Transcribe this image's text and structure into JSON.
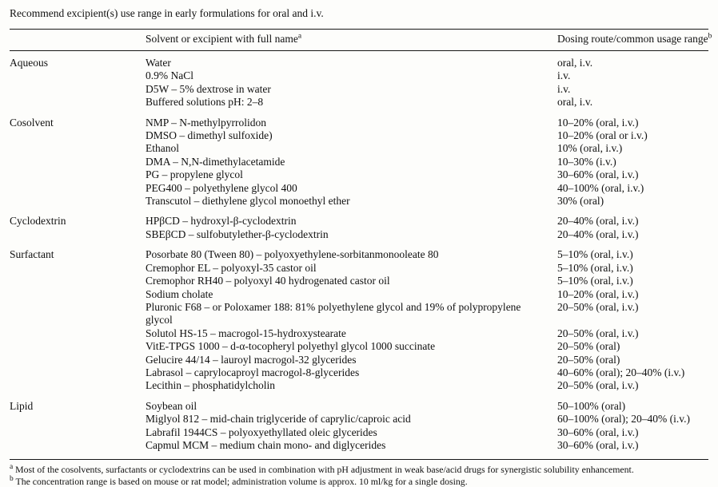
{
  "page": {
    "title": "Recommend excipient(s) use range in early formulations for oral and i.v."
  },
  "table": {
    "headers": {
      "name": {
        "label": "Solvent or excipient with full name",
        "sup": "a"
      },
      "range": {
        "label": "Dosing route/common usage range",
        "sup": "b"
      }
    },
    "groups": [
      {
        "category": "Aqueous",
        "rows": [
          {
            "name": "Water",
            "range": "oral, i.v."
          },
          {
            "name": "0.9% NaCl",
            "range": "i.v."
          },
          {
            "name": "D5W – 5% dextrose in water",
            "range": "i.v."
          },
          {
            "name": "Buffered solutions pH: 2–8",
            "range": "oral, i.v."
          }
        ]
      },
      {
        "category": "Cosolvent",
        "rows": [
          {
            "name": "NMP – N-methylpyrrolidon",
            "range": "10–20% (oral, i.v.)"
          },
          {
            "name": "DMSO – dimethyl sulfoxide)",
            "range": "10–20% (oral or i.v.)"
          },
          {
            "name": "Ethanol",
            "range": "10% (oral, i.v.)"
          },
          {
            "name": "DMA – N,N-dimethylacetamide",
            "range": "10–30% (i.v.)"
          },
          {
            "name": "PG – propylene glycol",
            "range": "30–60% (oral, i.v.)"
          },
          {
            "name": "PEG400 – polyethylene glycol 400",
            "range": "40–100% (oral, i.v.)"
          },
          {
            "name": "Transcutol – diethylene glycol monoethyl ether",
            "range": "30% (oral)"
          }
        ]
      },
      {
        "category": "Cyclodextrin",
        "rows": [
          {
            "name": "HPβCD – hydroxyl-β-cyclodextrin",
            "range": "20–40% (oral, i.v.)"
          },
          {
            "name": "SBEβCD – sulfobutylether-β-cyclodextrin",
            "range": "20–40% (oral, i.v.)"
          }
        ]
      },
      {
        "category": "Surfactant",
        "rows": [
          {
            "name": "Posorbate 80 (Tween 80) – polyoxyethylene-sorbitanmonooleate 80",
            "range": "5–10% (oral, i.v.)"
          },
          {
            "name": "Cremophor EL – polyoxyl-35 castor oil",
            "range": "5–10% (oral, i.v.)"
          },
          {
            "name": "Cremophor RH40 – polyoxyl 40 hydrogenated castor oil",
            "range": "5–10% (oral, i.v.)"
          },
          {
            "name": "Sodium cholate",
            "range": "10–20% (oral, i.v.)"
          },
          {
            "name": "Pluronic F68 – or Poloxamer 188: 81% polyethylene glycol and 19% of polypropylene glycol",
            "range": "20–50% (oral, i.v.)"
          },
          {
            "name": "Solutol HS-15 – macrogol-15-hydroxystearate",
            "range": "20–50% (oral, i.v.)"
          },
          {
            "name": "VitE-TPGS 1000 – d-α-tocopheryl polyethyl glycol 1000 succinate",
            "range": "20–50% (oral)"
          },
          {
            "name": "Gelucire 44/14 – lauroyl macrogol-32 glycerides",
            "range": "20–50% (oral)"
          },
          {
            "name": "Labrasol – caprylocaproyl macrogol-8-glycerides",
            "range": "40–60% (oral); 20–40% (i.v.)"
          },
          {
            "name": "Lecithin – phosphatidylcholin",
            "range": "20–50% (oral, i.v.)"
          }
        ]
      },
      {
        "category": "Lipid",
        "rows": [
          {
            "name": "Soybean oil",
            "range": "50–100% (oral)"
          },
          {
            "name": "Miglyol 812 – mid-chain triglyceride of caprylic/caproic acid",
            "range": "60–100% (oral); 20–40% (i.v.)"
          },
          {
            "name": "Labrafil 1944CS – polyoxyethyllated oleic glycerides",
            "range": "30–60% (oral, i.v.)"
          },
          {
            "name": "Capmul MCM – medium chain mono- and diglycerides",
            "range": "30–60% (oral, i.v.)"
          }
        ]
      }
    ]
  },
  "footnotes": [
    {
      "marker": "a",
      "text": "Most of the cosolvents, surfactants or cyclodextrins can be used in combination with pH adjustment in weak base/acid drugs for synergistic solubility enhancement."
    },
    {
      "marker": "b",
      "text": "The concentration range is based on mouse or rat model; administration volume is approx. 10 ml/kg for a single dosing."
    }
  ]
}
